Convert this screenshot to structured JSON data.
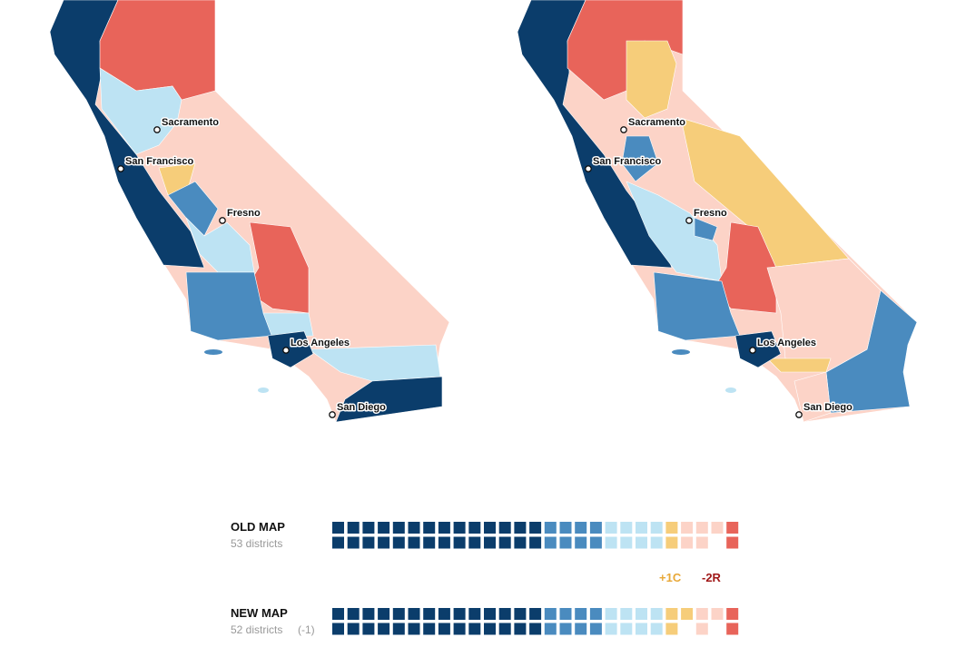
{
  "maps": [
    {
      "cities": [
        {
          "label": "Sacramento"
        },
        {
          "label": "San Francisco"
        },
        {
          "label": "Fresno"
        },
        {
          "label": "Los Angeles"
        },
        {
          "label": "San Diego"
        }
      ]
    },
    {
      "cities": [
        {
          "label": "Sacramento"
        },
        {
          "label": "San Francisco"
        },
        {
          "label": "Fresno"
        },
        {
          "label": "Los Angeles"
        },
        {
          "label": "San Diego"
        }
      ]
    }
  ],
  "legend": {
    "categories": [
      {
        "color": "#0b3d6b"
      },
      {
        "color": "#4a8bbf"
      },
      {
        "color": "#bde3f3"
      },
      {
        "color": "#f6cd7a"
      },
      {
        "color": "#fcd3c7"
      },
      {
        "color": "#e8645a"
      }
    ],
    "old": {
      "title": "OLD MAP",
      "subtitle": "53 districts",
      "counts": [
        28,
        8,
        8,
        2,
        5,
        2
      ]
    },
    "new": {
      "title": "NEW MAP",
      "subtitle": "52 districts",
      "note": "(-1)",
      "counts": [
        28,
        8,
        8,
        3,
        3,
        2
      ]
    },
    "changes": [
      {
        "label": "+1C",
        "color": "#e8a838"
      },
      {
        "label": "-2R",
        "color": "#a01818"
      }
    ]
  }
}
